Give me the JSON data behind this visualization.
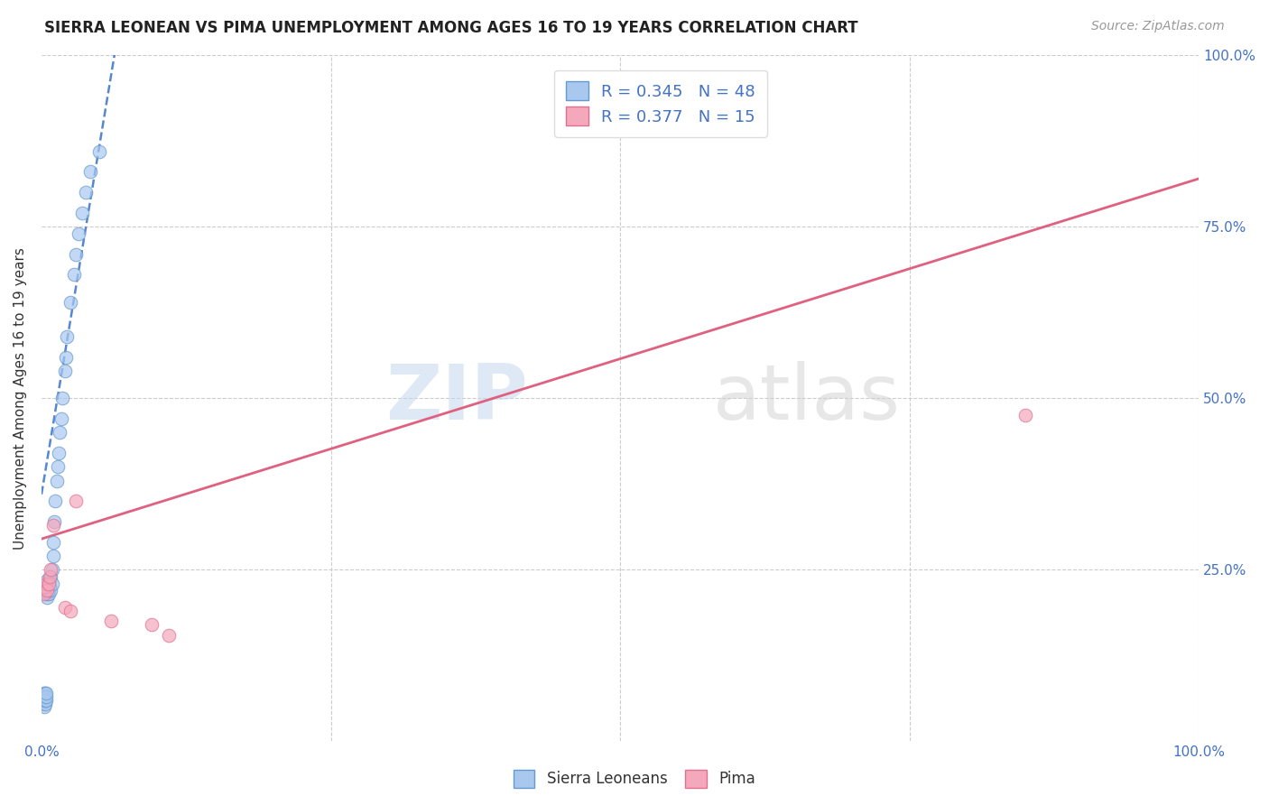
{
  "title": "SIERRA LEONEAN VS PIMA UNEMPLOYMENT AMONG AGES 16 TO 19 YEARS CORRELATION CHART",
  "source": "Source: ZipAtlas.com",
  "ylabel": "Unemployment Among Ages 16 to 19 years",
  "xlim": [
    0.0,
    1.0
  ],
  "ylim": [
    0.0,
    1.0
  ],
  "blue_color": "#A8C8F0",
  "pink_color": "#F5A8BC",
  "blue_edge_color": "#6699CC",
  "pink_edge_color": "#E07090",
  "blue_line_color": "#5588CC",
  "pink_line_color": "#E06080",
  "grid_color": "#CCCCCC",
  "background_color": "#FFFFFF",
  "watermark_zip": "ZIP",
  "watermark_atlas": "atlas",
  "legend_R_blue": "0.345",
  "legend_N_blue": "48",
  "legend_R_pink": "0.377",
  "legend_N_pink": "15",
  "title_fontsize": 12,
  "source_fontsize": 10,
  "tick_fontsize": 11,
  "legend_fontsize": 13,
  "ylabel_fontsize": 11,
  "sl_x": [
    0.001,
    0.001,
    0.002,
    0.002,
    0.002,
    0.003,
    0.003,
    0.003,
    0.003,
    0.004,
    0.004,
    0.004,
    0.005,
    0.005,
    0.005,
    0.005,
    0.005,
    0.005,
    0.006,
    0.006,
    0.006,
    0.007,
    0.007,
    0.008,
    0.008,
    0.009,
    0.009,
    0.01,
    0.01,
    0.011,
    0.012,
    0.013,
    0.014,
    0.015,
    0.016,
    0.017,
    0.018,
    0.02,
    0.021,
    0.022,
    0.025,
    0.028,
    0.03,
    0.032,
    0.035,
    0.038,
    0.042,
    0.05
  ],
  "sl_y": [
    0.055,
    0.065,
    0.05,
    0.06,
    0.07,
    0.055,
    0.06,
    0.065,
    0.07,
    0.06,
    0.065,
    0.07,
    0.21,
    0.215,
    0.22,
    0.225,
    0.23,
    0.235,
    0.215,
    0.22,
    0.23,
    0.225,
    0.235,
    0.22,
    0.24,
    0.23,
    0.25,
    0.27,
    0.29,
    0.32,
    0.35,
    0.38,
    0.4,
    0.42,
    0.45,
    0.47,
    0.5,
    0.54,
    0.56,
    0.59,
    0.64,
    0.68,
    0.71,
    0.74,
    0.77,
    0.8,
    0.83,
    0.86
  ],
  "pima_x": [
    0.002,
    0.003,
    0.004,
    0.005,
    0.006,
    0.007,
    0.008,
    0.01,
    0.02,
    0.025,
    0.03,
    0.06,
    0.095,
    0.11,
    0.85
  ],
  "pima_y": [
    0.215,
    0.225,
    0.23,
    0.22,
    0.23,
    0.24,
    0.25,
    0.315,
    0.195,
    0.19,
    0.35,
    0.175,
    0.17,
    0.155,
    0.475
  ],
  "blue_line_x0": 0.0,
  "blue_line_y0": 0.36,
  "blue_line_x1": 0.065,
  "blue_line_y1": 1.02,
  "pink_line_x0": 0.0,
  "pink_line_y0": 0.295,
  "pink_line_x1": 1.0,
  "pink_line_y1": 0.82
}
